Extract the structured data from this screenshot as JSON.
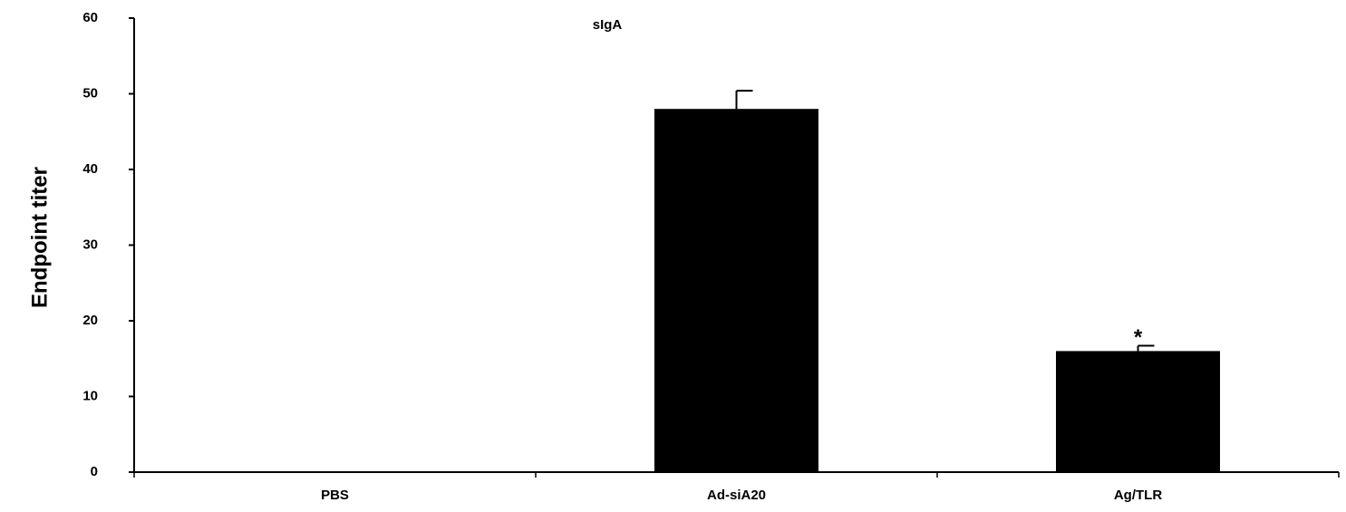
{
  "chart_data": {
    "type": "bar",
    "title": "sIgA",
    "ylabel": "Endpoint titer",
    "categories": [
      "PBS",
      "Ad-siA20",
      "Ag/TLR"
    ],
    "values": [
      0,
      48,
      16
    ],
    "errors": [
      null,
      2.4,
      0.7
    ],
    "annotations": [
      null,
      null,
      "*"
    ],
    "color": "#000000",
    "ylim": [
      0,
      60
    ],
    "yticks": [
      0,
      10,
      20,
      30,
      40,
      50,
      60
    ],
    "grid": false
  }
}
